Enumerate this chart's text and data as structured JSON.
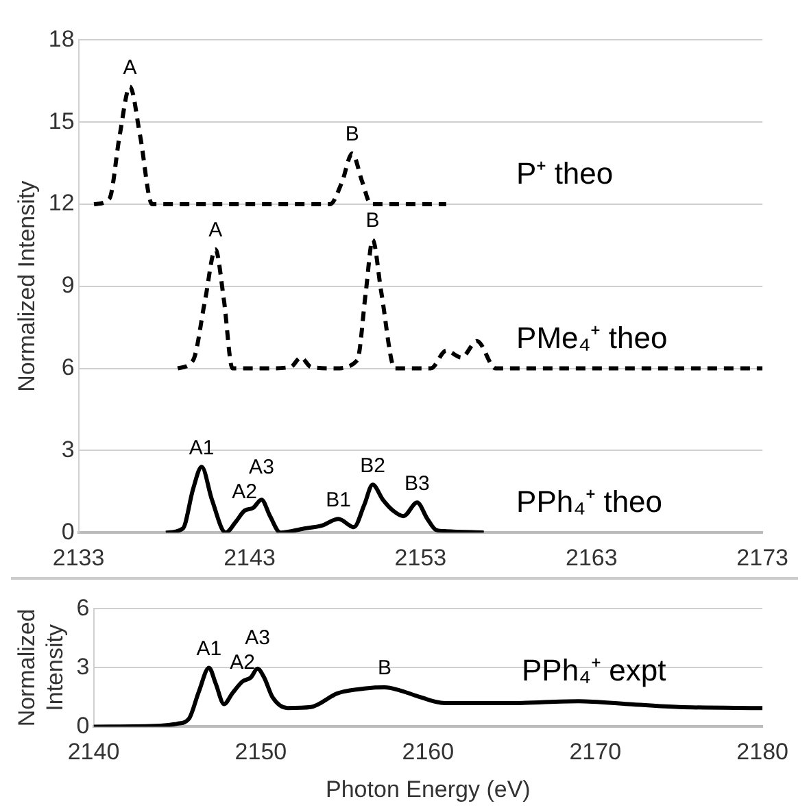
{
  "chart_data": [
    {
      "type": "line",
      "ylabel": "Normalized Intensity",
      "xlim": [
        2133,
        2173
      ],
      "xticks": [
        2133,
        2143,
        2153,
        2163,
        2173
      ],
      "ylim": [
        0,
        18
      ],
      "yticks": [
        0,
        3,
        6,
        9,
        12,
        15,
        18
      ],
      "grid": "y",
      "legend": false,
      "marker": "none",
      "series": [
        {
          "name": "P⁺ theo",
          "color": "#000000",
          "line_style": "dashed",
          "x": [
            2133.9,
            2134.8,
            2135.4,
            2136.0,
            2136.6,
            2137.3,
            2140,
            2144,
            2147.7,
            2148.4,
            2149.0,
            2149.6,
            2150.1,
            2152,
            2154.5
          ],
          "values": [
            12,
            12.2,
            14.5,
            16.3,
            14.5,
            12,
            12,
            12,
            12,
            12.8,
            13.85,
            12.8,
            12,
            12,
            12
          ]
        },
        {
          "name": "PMe₄⁺ theo",
          "color": "#000000",
          "line_style": "dashed",
          "x": [
            2138.8,
            2139.7,
            2140.4,
            2141.0,
            2141.5,
            2142.0,
            2144,
            2145.4,
            2146.0,
            2146.6,
            2148,
            2149.3,
            2149.8,
            2150.2,
            2150.7,
            2151.5,
            2153.6,
            2154.5,
            2155.4,
            2156.3,
            2157.4,
            2165,
            2173
          ],
          "values": [
            6,
            6.3,
            8.5,
            10.35,
            8.5,
            6,
            6,
            6.05,
            6.4,
            6.05,
            6,
            6.3,
            8.8,
            10.7,
            8.8,
            6,
            6,
            6.65,
            6.4,
            7.0,
            6,
            6,
            6
          ]
        },
        {
          "name": "PPh₄⁺ theo",
          "color": "#000000",
          "line_style": "solid",
          "x": [
            2138.1,
            2139.1,
            2139.7,
            2140.2,
            2140.8,
            2141.6,
            2142.2,
            2142.7,
            2143.2,
            2143.7,
            2144.2,
            2144.8,
            2146.2,
            2147.2,
            2148.2,
            2149.1,
            2149.7,
            2150.2,
            2150.8,
            2151.4,
            2152.0,
            2152.8,
            2153.4,
            2153.9,
            2154.5,
            2156.7
          ],
          "values": [
            0,
            0.15,
            1.6,
            2.4,
            1.2,
            0,
            0.4,
            0.8,
            0.9,
            1.2,
            0.6,
            0,
            0.15,
            0.25,
            0.5,
            0.2,
            1.0,
            1.75,
            1.2,
            0.8,
            0.6,
            1.1,
            0.5,
            0.1,
            0.05,
            0
          ]
        }
      ],
      "annotations": [
        {
          "text": "A",
          "x": 2136.0,
          "y": 16.3
        },
        {
          "text": "B",
          "x": 2149.0,
          "y": 13.85
        },
        {
          "text": "A",
          "x": 2141.0,
          "y": 10.35
        },
        {
          "text": "B",
          "x": 2150.2,
          "y": 10.7
        },
        {
          "text": "A1",
          "x": 2140.2,
          "y": 2.4
        },
        {
          "text": "A2",
          "x": 2142.7,
          "y": 0.8
        },
        {
          "text": "A3",
          "x": 2143.7,
          "y": 1.2
        },
        {
          "text": "B1",
          "x": 2148.2,
          "y": 0.5
        },
        {
          "text": "B2",
          "x": 2150.2,
          "y": 1.75
        },
        {
          "text": "B3",
          "x": 2152.8,
          "y": 1.1
        }
      ]
    },
    {
      "type": "line",
      "xlabel": "Photon Energy (eV)",
      "ylabel": "Normalized Intensity",
      "xlim": [
        2140,
        2180
      ],
      "xticks": [
        2140,
        2150,
        2160,
        2170,
        2180
      ],
      "ylim": [
        0,
        6
      ],
      "yticks": [
        0,
        3,
        6
      ],
      "grid": "y",
      "legend": false,
      "marker": "none",
      "series": [
        {
          "name": "PPh₄⁺ expt",
          "color": "#000000",
          "line_style": "solid",
          "x": [
            2140,
            2144,
            2145,
            2145.7,
            2146.3,
            2146.9,
            2147.3,
            2147.8,
            2148.3,
            2148.9,
            2149.4,
            2149.8,
            2150.2,
            2150.7,
            2151.6,
            2153,
            2154.6,
            2156.3,
            2157.4,
            2158.3,
            2159.2,
            2161,
            2165,
            2169,
            2172,
            2175,
            2180
          ],
          "values": [
            0,
            0.05,
            0.15,
            0.4,
            1.8,
            3.0,
            2.2,
            1.15,
            1.7,
            2.3,
            2.5,
            2.95,
            2.5,
            1.5,
            0.95,
            1.0,
            1.7,
            1.95,
            2.0,
            1.85,
            1.6,
            1.2,
            1.2,
            1.3,
            1.15,
            1.0,
            0.95
          ]
        }
      ],
      "annotations": [
        {
          "text": "A1",
          "x": 2146.9,
          "y": 3.0
        },
        {
          "text": "A2",
          "x": 2148.9,
          "y": 2.3
        },
        {
          "text": "A3",
          "x": 2149.8,
          "y": 2.95
        },
        {
          "text": "B",
          "x": 2157.4,
          "y": 2.0
        }
      ]
    }
  ]
}
